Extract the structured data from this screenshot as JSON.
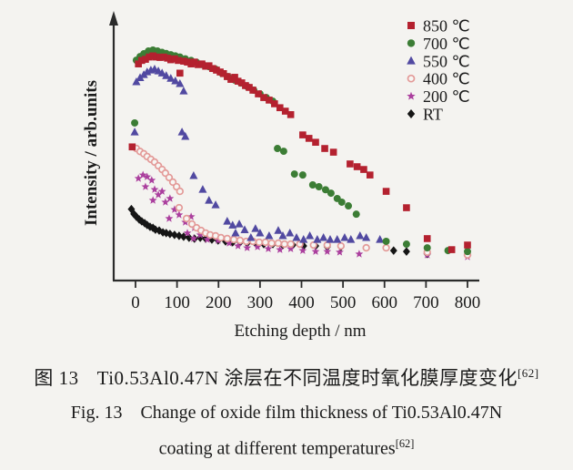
{
  "figure": {
    "caption_zh": {
      "prefix": "图 13",
      "text": "Ti0.53Al0.47N 涂层在不同温度时氧化膜厚度变化",
      "sup": "[62]"
    },
    "caption_en": {
      "prefix": "Fig. 13",
      "line1": "Change of oxide film thickness of Ti0.53Al0.47N",
      "line2": "coating at different temperatures",
      "sup": "[62]"
    }
  },
  "colors": {
    "axis": "#2b2b2b",
    "text": "#1b1b1b",
    "background": "#f4f3f0",
    "series_850": "#b4212f",
    "series_700": "#3c7d35",
    "series_550": "#5149a1",
    "series_400": "#e39a98",
    "series_200": "#ab3f9e",
    "series_rt": "#151515"
  },
  "chart_data": {
    "type": "scatter",
    "title": "",
    "xlabel": "Etching depth / nm",
    "ylabel": "Intensity / arb.units",
    "x_ticks": [
      0,
      100,
      200,
      300,
      400,
      500,
      600,
      700,
      800
    ],
    "xlim": [
      -30,
      830
    ],
    "ylim": [
      0,
      1.05
    ],
    "grid": false,
    "y_axis_arrow": true,
    "legend_position": "top-right",
    "series": [
      {
        "name": "850 ℃",
        "marker": "square",
        "color": "#b4212f",
        "points": [
          [
            -8,
            0.58
          ],
          [
            7,
            0.94
          ],
          [
            15,
            0.955
          ],
          [
            24,
            0.96
          ],
          [
            33,
            0.97
          ],
          [
            42,
            0.975
          ],
          [
            50,
            0.97
          ],
          [
            59,
            0.968
          ],
          [
            68,
            0.97
          ],
          [
            77,
            0.965
          ],
          [
            85,
            0.958
          ],
          [
            94,
            0.962
          ],
          [
            103,
            0.955
          ],
          [
            107,
            0.9
          ],
          [
            116,
            0.952
          ],
          [
            125,
            0.948
          ],
          [
            134,
            0.94
          ],
          [
            142,
            0.948
          ],
          [
            151,
            0.937
          ],
          [
            160,
            0.94
          ],
          [
            169,
            0.93
          ],
          [
            177,
            0.932
          ],
          [
            186,
            0.92
          ],
          [
            195,
            0.913
          ],
          [
            204,
            0.905
          ],
          [
            212,
            0.898
          ],
          [
            221,
            0.885
          ],
          [
            230,
            0.873
          ],
          [
            239,
            0.882
          ],
          [
            247,
            0.865
          ],
          [
            256,
            0.858
          ],
          [
            265,
            0.846
          ],
          [
            274,
            0.838
          ],
          [
            283,
            0.826
          ],
          [
            296,
            0.81
          ],
          [
            309,
            0.794
          ],
          [
            322,
            0.783
          ],
          [
            335,
            0.767
          ],
          [
            348,
            0.75
          ],
          [
            361,
            0.735
          ],
          [
            374,
            0.72
          ],
          [
            403,
            0.632
          ],
          [
            418,
            0.617
          ],
          [
            434,
            0.6
          ],
          [
            456,
            0.573
          ],
          [
            477,
            0.557
          ],
          [
            517,
            0.506
          ],
          [
            534,
            0.494
          ],
          [
            550,
            0.482
          ],
          [
            565,
            0.458
          ],
          [
            604,
            0.387
          ],
          [
            653,
            0.316
          ],
          [
            703,
            0.182
          ],
          [
            762,
            0.134
          ],
          [
            800,
            0.154
          ]
        ]
      },
      {
        "name": "700 ℃",
        "marker": "circle",
        "color": "#3c7d35",
        "points": [
          [
            -2,
            0.684
          ],
          [
            2,
            0.956
          ],
          [
            11,
            0.972
          ],
          [
            20,
            0.984
          ],
          [
            31,
            0.996
          ],
          [
            42,
            1.0
          ],
          [
            53,
            0.996
          ],
          [
            64,
            0.99
          ],
          [
            74,
            0.985
          ],
          [
            85,
            0.98
          ],
          [
            96,
            0.975
          ],
          [
            107,
            0.97
          ],
          [
            120,
            0.962
          ],
          [
            134,
            0.955
          ],
          [
            147,
            0.947
          ],
          [
            162,
            0.937
          ],
          [
            177,
            0.928
          ],
          [
            193,
            0.917
          ],
          [
            208,
            0.9
          ],
          [
            223,
            0.885
          ],
          [
            239,
            0.87
          ],
          [
            254,
            0.857
          ],
          [
            269,
            0.842
          ],
          [
            285,
            0.826
          ],
          [
            300,
            0.81
          ],
          [
            315,
            0.794
          ],
          [
            331,
            0.778
          ],
          [
            342,
            0.573
          ],
          [
            357,
            0.561
          ],
          [
            383,
            0.462
          ],
          [
            403,
            0.458
          ],
          [
            427,
            0.415
          ],
          [
            442,
            0.407
          ],
          [
            458,
            0.394
          ],
          [
            471,
            0.379
          ],
          [
            486,
            0.356
          ],
          [
            497,
            0.34
          ],
          [
            513,
            0.324
          ],
          [
            532,
            0.288
          ],
          [
            604,
            0.17
          ],
          [
            653,
            0.158
          ],
          [
            703,
            0.142
          ],
          [
            753,
            0.13
          ],
          [
            800,
            0.126
          ]
        ]
      },
      {
        "name": "550 ℃",
        "marker": "triangle",
        "color": "#5149a1",
        "points": [
          [
            -2,
            0.644
          ],
          [
            2,
            0.862
          ],
          [
            11,
            0.88
          ],
          [
            20,
            0.893
          ],
          [
            28,
            0.905
          ],
          [
            37,
            0.913
          ],
          [
            46,
            0.917
          ],
          [
            55,
            0.909
          ],
          [
            64,
            0.9
          ],
          [
            74,
            0.889
          ],
          [
            85,
            0.877
          ],
          [
            96,
            0.866
          ],
          [
            107,
            0.854
          ],
          [
            116,
            0.822
          ],
          [
            112,
            0.644
          ],
          [
            120,
            0.625
          ],
          [
            140,
            0.455
          ],
          [
            162,
            0.395
          ],
          [
            177,
            0.348
          ],
          [
            193,
            0.328
          ],
          [
            221,
            0.257
          ],
          [
            234,
            0.24
          ],
          [
            250,
            0.245
          ],
          [
            263,
            0.22
          ],
          [
            241,
            0.206
          ],
          [
            289,
            0.225
          ],
          [
            300,
            0.206
          ],
          [
            322,
            0.194
          ],
          [
            278,
            0.186
          ],
          [
            344,
            0.217
          ],
          [
            355,
            0.194
          ],
          [
            372,
            0.206
          ],
          [
            388,
            0.186
          ],
          [
            405,
            0.178
          ],
          [
            420,
            0.194
          ],
          [
            438,
            0.178
          ],
          [
            453,
            0.186
          ],
          [
            469,
            0.178
          ],
          [
            486,
            0.178
          ],
          [
            504,
            0.186
          ],
          [
            519,
            0.178
          ],
          [
            541,
            0.194
          ],
          [
            556,
            0.186
          ],
          [
            589,
            0.178
          ]
        ]
      },
      {
        "name": "400 ℃",
        "marker": "open-circle",
        "color": "#e39a98",
        "points": [
          [
            2,
            0.573
          ],
          [
            11,
            0.56
          ],
          [
            20,
            0.55
          ],
          [
            28,
            0.538
          ],
          [
            37,
            0.526
          ],
          [
            46,
            0.514
          ],
          [
            55,
            0.498
          ],
          [
            64,
            0.482
          ],
          [
            72,
            0.466
          ],
          [
            81,
            0.447
          ],
          [
            90,
            0.427
          ],
          [
            99,
            0.407
          ],
          [
            107,
            0.387
          ],
          [
            105,
            0.316
          ],
          [
            123,
            0.269
          ],
          [
            136,
            0.245
          ],
          [
            147,
            0.229
          ],
          [
            158,
            0.217
          ],
          [
            169,
            0.206
          ],
          [
            180,
            0.198
          ],
          [
            193,
            0.194
          ],
          [
            206,
            0.186
          ],
          [
            221,
            0.182
          ],
          [
            237,
            0.178
          ],
          [
            252,
            0.174
          ],
          [
            267,
            0.17
          ],
          [
            283,
            0.17
          ],
          [
            298,
            0.166
          ],
          [
            313,
            0.166
          ],
          [
            328,
            0.162
          ],
          [
            344,
            0.162
          ],
          [
            359,
            0.158
          ],
          [
            374,
            0.158
          ],
          [
            396,
            0.158
          ],
          [
            429,
            0.154
          ],
          [
            462,
            0.154
          ],
          [
            495,
            0.15
          ],
          [
            556,
            0.142
          ],
          [
            604,
            0.142
          ],
          [
            703,
            0.123
          ],
          [
            800,
            0.111
          ]
        ]
      },
      {
        "name": "200 ℃",
        "marker": "star",
        "color": "#ab3f9e",
        "points": [
          [
            7,
            0.443
          ],
          [
            18,
            0.458
          ],
          [
            28,
            0.45
          ],
          [
            39,
            0.435
          ],
          [
            24,
            0.407
          ],
          [
            46,
            0.395
          ],
          [
            55,
            0.372
          ],
          [
            64,
            0.387
          ],
          [
            42,
            0.348
          ],
          [
            72,
            0.34
          ],
          [
            83,
            0.356
          ],
          [
            94,
            0.308
          ],
          [
            105,
            0.285
          ],
          [
            81,
            0.269
          ],
          [
            120,
            0.253
          ],
          [
            134,
            0.277
          ],
          [
            142,
            0.229
          ],
          [
            125,
            0.206
          ],
          [
            156,
            0.198
          ],
          [
            140,
            0.182
          ],
          [
            173,
            0.178
          ],
          [
            199,
            0.174
          ],
          [
            226,
            0.162
          ],
          [
            247,
            0.15
          ],
          [
            269,
            0.142
          ],
          [
            294,
            0.146
          ],
          [
            320,
            0.138
          ],
          [
            348,
            0.134
          ],
          [
            374,
            0.138
          ],
          [
            403,
            0.13
          ],
          [
            434,
            0.126
          ],
          [
            462,
            0.126
          ],
          [
            492,
            0.123
          ],
          [
            539,
            0.115
          ],
          [
            703,
            0.111
          ],
          [
            800,
            0.103
          ]
        ]
      },
      {
        "name": "RT",
        "marker": "diamond",
        "color": "#151515",
        "points": [
          [
            -10,
            0.31
          ],
          [
            -4,
            0.289
          ],
          [
            2,
            0.277
          ],
          [
            9,
            0.265
          ],
          [
            15,
            0.257
          ],
          [
            22,
            0.249
          ],
          [
            28,
            0.241
          ],
          [
            35,
            0.233
          ],
          [
            42,
            0.229
          ],
          [
            48,
            0.221
          ],
          [
            57,
            0.217
          ],
          [
            66,
            0.209
          ],
          [
            74,
            0.206
          ],
          [
            83,
            0.202
          ],
          [
            94,
            0.198
          ],
          [
            105,
            0.194
          ],
          [
            116,
            0.19
          ],
          [
            129,
            0.186
          ],
          [
            142,
            0.182
          ],
          [
            156,
            0.186
          ],
          [
            169,
            0.182
          ],
          [
            184,
            0.178
          ],
          [
            199,
            0.174
          ],
          [
            217,
            0.17
          ],
          [
            234,
            0.166
          ],
          [
            252,
            0.166
          ],
          [
            269,
            0.162
          ],
          [
            289,
            0.162
          ],
          [
            309,
            0.158
          ],
          [
            331,
            0.158
          ],
          [
            355,
            0.154
          ],
          [
            379,
            0.154
          ],
          [
            405,
            0.15
          ],
          [
            434,
            0.15
          ],
          [
            462,
            0.146
          ],
          [
            495,
            0.146
          ],
          [
            622,
            0.13
          ],
          [
            653,
            0.126
          ],
          [
            703,
            0.115
          ]
        ]
      }
    ]
  }
}
